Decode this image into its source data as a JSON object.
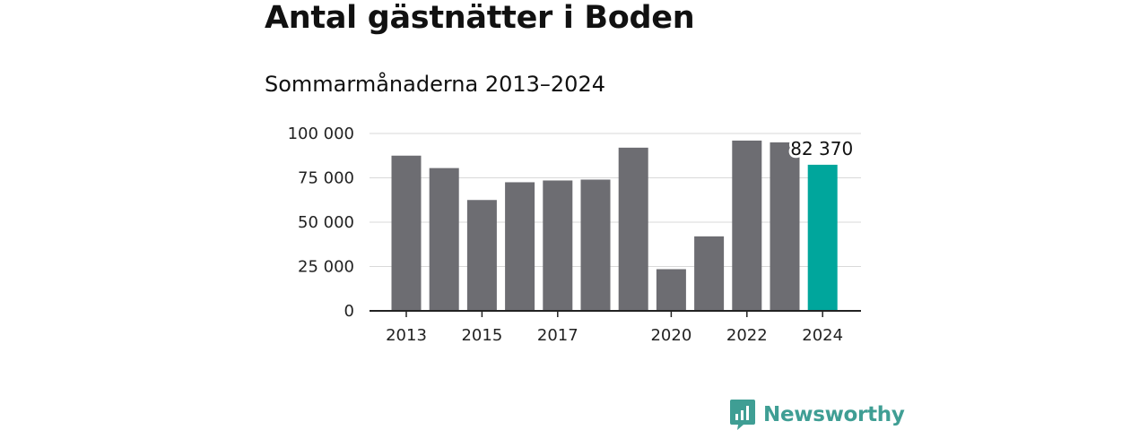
{
  "chart_data": {
    "type": "bar",
    "title": "Antal gästnätter i Boden",
    "subtitle": "Sommarmånaderna 2013–2024",
    "categories": [
      "2013",
      "2014",
      "2015",
      "2016",
      "2017",
      "2018",
      "2019",
      "2020",
      "2021",
      "2022",
      "2023",
      "2024"
    ],
    "values": [
      87500,
      80500,
      62500,
      72500,
      73500,
      74000,
      92000,
      23500,
      42000,
      96000,
      95000,
      82370
    ],
    "x_tick_labels": [
      "2013",
      "",
      "2015",
      "",
      "2017",
      "",
      "",
      "2020",
      "",
      "2022",
      "",
      "2024"
    ],
    "y_ticks": [
      0,
      25000,
      50000,
      75000,
      100000
    ],
    "y_tick_labels": [
      "0",
      "25 000",
      "50 000",
      "75 000",
      "100 000"
    ],
    "ylim": [
      0,
      100000
    ],
    "grid": true,
    "highlight_index": 11,
    "highlight_label": "82 370",
    "colors": {
      "bar": "#6d6d72",
      "highlight": "#00a69c",
      "grid": "#d9d9d9",
      "axis": "#222222"
    }
  },
  "brand": {
    "name": "Newsworthy",
    "color": "#3f9e94"
  }
}
